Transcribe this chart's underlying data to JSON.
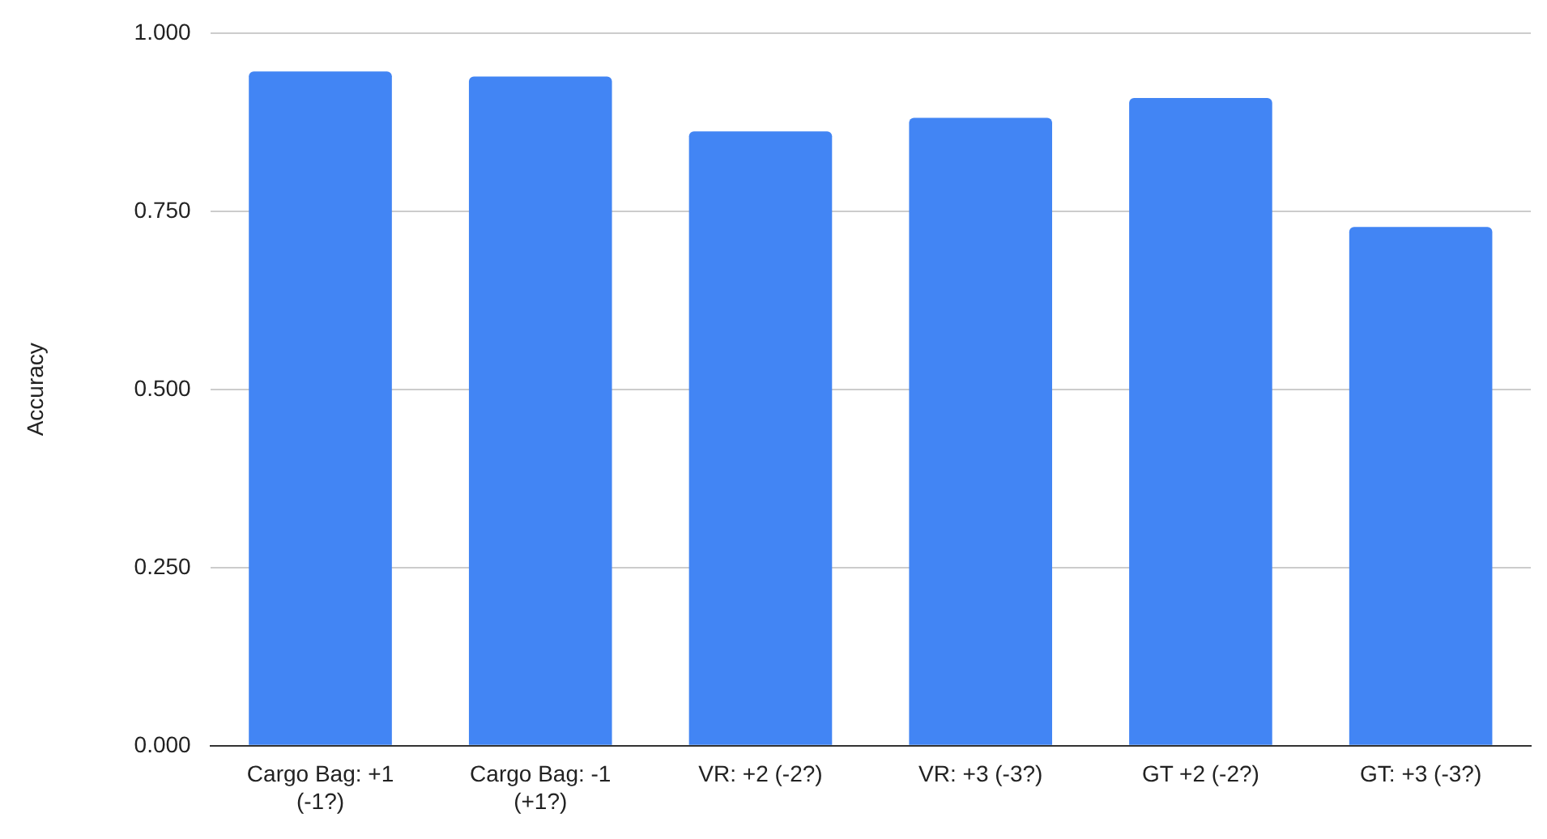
{
  "chart_data": {
    "type": "bar",
    "ylabel": "Accuracy",
    "categories": [
      "Cargo Bag: +1 (-1?)",
      "Cargo Bag: -1 (+1?)",
      "VR: +2 (-2?)",
      "VR: +3 (-3?)",
      "GT +2 (-2?)",
      "GT: +3 (-3?)"
    ],
    "values": [
      0.946,
      0.939,
      0.862,
      0.881,
      0.909,
      0.728
    ],
    "color": "#4285f4",
    "ylim": [
      0,
      1
    ],
    "yticks": [
      {
        "value": 0,
        "label": "0.000"
      },
      {
        "value": 0.25,
        "label": "0.250"
      },
      {
        "value": 0.5,
        "label": "0.500"
      },
      {
        "value": 0.75,
        "label": "0.750"
      },
      {
        "value": 1,
        "label": "1.000"
      }
    ],
    "grid": "y"
  }
}
